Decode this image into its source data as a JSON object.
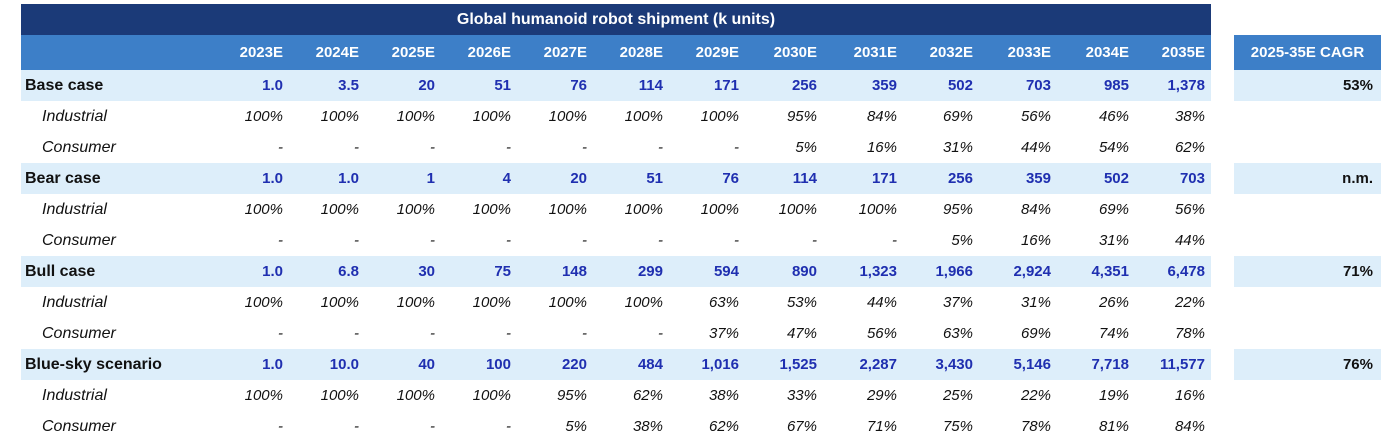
{
  "table": {
    "title": "Global humanoid robot shipment (k units)",
    "years": [
      "2023E",
      "2024E",
      "2025E",
      "2026E",
      "2027E",
      "2028E",
      "2029E",
      "2030E",
      "2031E",
      "2032E",
      "2033E",
      "2034E",
      "2035E"
    ],
    "cagr_header": "2025-35E CAGR",
    "rows": [
      {
        "type": "main",
        "label": "Base case",
        "values": [
          "1.0",
          "3.5",
          "20",
          "51",
          "76",
          "114",
          "171",
          "256",
          "359",
          "502",
          "703",
          "985",
          "1,378"
        ],
        "cagr": "53%"
      },
      {
        "type": "sub",
        "label": "Industrial",
        "values": [
          "100%",
          "100%",
          "100%",
          "100%",
          "100%",
          "100%",
          "100%",
          "95%",
          "84%",
          "69%",
          "56%",
          "46%",
          "38%"
        ]
      },
      {
        "type": "sub",
        "label": "Consumer",
        "values": [
          "-",
          "-",
          "-",
          "-",
          "-",
          "-",
          "-",
          "5%",
          "16%",
          "31%",
          "44%",
          "54%",
          "62%"
        ]
      },
      {
        "type": "main",
        "label": "Bear case",
        "values": [
          "1.0",
          "1.0",
          "1",
          "4",
          "20",
          "51",
          "76",
          "114",
          "171",
          "256",
          "359",
          "502",
          "703"
        ],
        "cagr": "n.m."
      },
      {
        "type": "sub",
        "label": "Industrial",
        "values": [
          "100%",
          "100%",
          "100%",
          "100%",
          "100%",
          "100%",
          "100%",
          "100%",
          "100%",
          "95%",
          "84%",
          "69%",
          "56%"
        ]
      },
      {
        "type": "sub",
        "label": "Consumer",
        "values": [
          "-",
          "-",
          "-",
          "-",
          "-",
          "-",
          "-",
          "-",
          "-",
          "5%",
          "16%",
          "31%",
          "44%"
        ]
      },
      {
        "type": "main",
        "label": "Bull case",
        "values": [
          "1.0",
          "6.8",
          "30",
          "75",
          "148",
          "299",
          "594",
          "890",
          "1,323",
          "1,966",
          "2,924",
          "4,351",
          "6,478"
        ],
        "cagr": "71%"
      },
      {
        "type": "sub",
        "label": "Industrial",
        "values": [
          "100%",
          "100%",
          "100%",
          "100%",
          "100%",
          "100%",
          "63%",
          "53%",
          "44%",
          "37%",
          "31%",
          "26%",
          "22%"
        ]
      },
      {
        "type": "sub",
        "label": "Consumer",
        "values": [
          "-",
          "-",
          "-",
          "-",
          "-",
          "-",
          "37%",
          "47%",
          "56%",
          "63%",
          "69%",
          "74%",
          "78%"
        ]
      },
      {
        "type": "main",
        "label": "Blue-sky scenario",
        "values": [
          "1.0",
          "10.0",
          "40",
          "100",
          "220",
          "484",
          "1,016",
          "1,525",
          "2,287",
          "3,430",
          "5,146",
          "7,718",
          "11,577"
        ],
        "cagr": "76%"
      },
      {
        "type": "sub",
        "label": "Industrial",
        "values": [
          "100%",
          "100%",
          "100%",
          "100%",
          "95%",
          "62%",
          "38%",
          "33%",
          "29%",
          "25%",
          "22%",
          "19%",
          "16%"
        ]
      },
      {
        "type": "sub",
        "label": "Consumer",
        "values": [
          "-",
          "-",
          "-",
          "-",
          "5%",
          "38%",
          "62%",
          "67%",
          "71%",
          "75%",
          "78%",
          "81%",
          "84%"
        ]
      }
    ]
  }
}
